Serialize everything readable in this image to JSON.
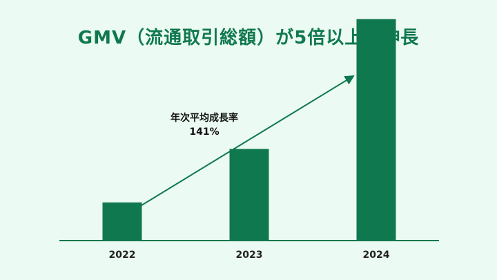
{
  "chart_data": {
    "type": "bar",
    "title": "GMV（流通取引総額）が5倍以上に伸長",
    "categories": [
      "2022",
      "2023",
      "2024"
    ],
    "values": [
      1.0,
      2.4,
      5.8
    ],
    "ylim": [
      0,
      6.3
    ],
    "y_axis_shown": false,
    "grid": false,
    "bar_color": "#10784f",
    "title_color": "#10784f",
    "background": "#ebfaf2",
    "annotation": {
      "label": "年次平均成長率",
      "value": "141%",
      "arrow": true
    }
  }
}
